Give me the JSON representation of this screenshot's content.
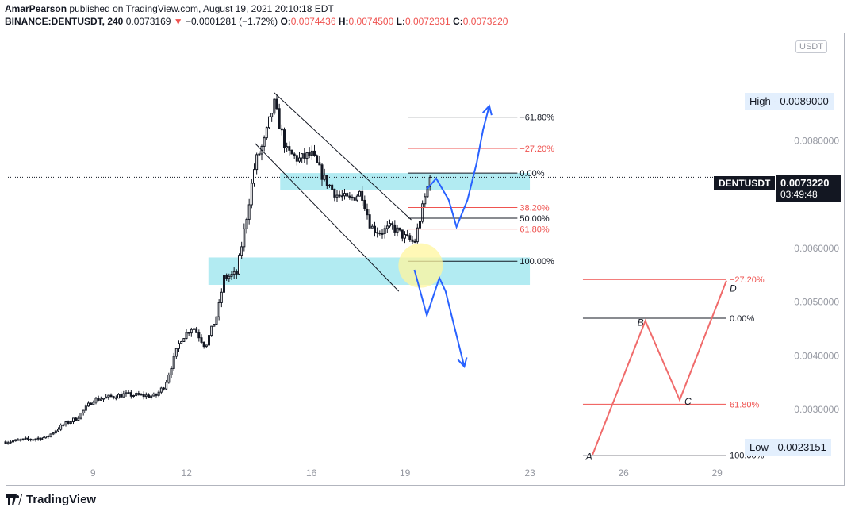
{
  "header": {
    "author": "AmarPearson",
    "published_text": "published on TradingView.com, August 19, 2021 20:10:18 EDT",
    "symbol": "BINANCE:DENTUSDT, 240",
    "last": "0.0073169",
    "change": "−0.0001281 (−1.72%)",
    "o_label": "O:",
    "o": "0.0074436",
    "h_label": "H:",
    "h": "0.0074500",
    "l_label": "L:",
    "l": "0.0072331",
    "c_label": "C:",
    "c": "0.0073220"
  },
  "price_axis": {
    "currency": "USDT",
    "high_label": "High",
    "high_value": "0.0089000",
    "low_label": "Low",
    "low_value": "0.0023151",
    "symbol_tag": "DENTUSDT",
    "current_price": "0.0073220",
    "countdown": "03:49:48"
  },
  "footer": {
    "brand": "TradingView"
  },
  "colors": {
    "bull": "#ffffff",
    "bear": "#131722",
    "fib_red": "#ef5350",
    "zone": "#b2ebf2",
    "projection": "#2962ff",
    "harmonic": "#f06b6b",
    "highlight": "#fff59d"
  },
  "chart_data": {
    "type": "candlestick",
    "title": "BINANCE:DENTUSDT, 240",
    "ylabel": "USDT",
    "y_range": [
      0.0016,
      0.01
    ],
    "y_ticks": [
      {
        "value": 0.008,
        "label": "0.0080000"
      },
      {
        "value": 0.006,
        "label": "0.0060000"
      },
      {
        "value": 0.005,
        "label": "0.0050000"
      },
      {
        "value": 0.004,
        "label": "0.0040000"
      },
      {
        "value": 0.003,
        "label": "0.0030000"
      }
    ],
    "x_range": [
      6.2,
      30.8
    ],
    "x_ticks": [
      {
        "value": 9,
        "label": "9"
      },
      {
        "value": 12,
        "label": "12"
      },
      {
        "value": 16,
        "label": "16"
      },
      {
        "value": 19,
        "label": "19"
      },
      {
        "value": 23,
        "label": "23"
      },
      {
        "value": 26,
        "label": "26"
      },
      {
        "value": 29,
        "label": "29"
      }
    ],
    "anchors": [
      {
        "x": 6.2,
        "price": 0.0024
      },
      {
        "x": 7.5,
        "price": 0.00248
      },
      {
        "x": 8.0,
        "price": 0.0027
      },
      {
        "x": 8.5,
        "price": 0.00285
      },
      {
        "x": 9.0,
        "price": 0.00318
      },
      {
        "x": 10.0,
        "price": 0.00328
      },
      {
        "x": 11.0,
        "price": 0.00325
      },
      {
        "x": 11.3,
        "price": 0.00345
      },
      {
        "x": 11.8,
        "price": 0.0043
      },
      {
        "x": 12.2,
        "price": 0.00455
      },
      {
        "x": 12.6,
        "price": 0.00418
      },
      {
        "x": 13.0,
        "price": 0.0048
      },
      {
        "x": 13.2,
        "price": 0.00545
      },
      {
        "x": 13.6,
        "price": 0.00552
      },
      {
        "x": 13.9,
        "price": 0.0065
      },
      {
        "x": 14.2,
        "price": 0.0076
      },
      {
        "x": 14.5,
        "price": 0.008
      },
      {
        "x": 14.8,
        "price": 0.0087
      },
      {
        "x": 15.2,
        "price": 0.0078
      },
      {
        "x": 15.6,
        "price": 0.00765
      },
      {
        "x": 16.0,
        "price": 0.00775
      },
      {
        "x": 16.4,
        "price": 0.0073
      },
      {
        "x": 16.8,
        "price": 0.007
      },
      {
        "x": 17.2,
        "price": 0.0069
      },
      {
        "x": 17.6,
        "price": 0.00705
      },
      {
        "x": 17.9,
        "price": 0.0064
      },
      {
        "x": 18.2,
        "price": 0.0063
      },
      {
        "x": 18.6,
        "price": 0.0064
      },
      {
        "x": 19.0,
        "price": 0.0062
      },
      {
        "x": 19.3,
        "price": 0.0061
      },
      {
        "x": 19.6,
        "price": 0.00685
      },
      {
        "x": 19.8,
        "price": 0.00732
      }
    ],
    "zones": [
      {
        "name": "upper-supply-zone",
        "x0": 15.0,
        "x1": 23.0,
        "y0": 0.00708,
        "y1": 0.0074
      },
      {
        "name": "lower-demand-zone",
        "x0": 12.7,
        "x1": 23.0,
        "y0": 0.00532,
        "y1": 0.00583
      }
    ],
    "channel": [
      {
        "x0": 14.8,
        "y0": 0.0089,
        "x1": 19.2,
        "y1": 0.00653
      },
      {
        "x0": 14.2,
        "y0": 0.00795,
        "x1": 18.8,
        "y1": 0.0052
      }
    ],
    "fib_main": {
      "x0": 19.1,
      "x1": 22.6,
      "levels": [
        {
          "label": "−61.80%",
          "value": 0.00844,
          "color": "#131722"
        },
        {
          "label": "−27.20%",
          "value": 0.00786,
          "color": "#ef5350"
        },
        {
          "label": "0.00%",
          "value": 0.0074,
          "color": "#131722"
        },
        {
          "label": "38.20%",
          "value": 0.00676,
          "color": "#ef5350"
        },
        {
          "label": "50.00%",
          "value": 0.00656,
          "color": "#131722"
        },
        {
          "label": "61.80%",
          "value": 0.00636,
          "color": "#ef5350"
        },
        {
          "label": "100.00%",
          "value": 0.00576,
          "color": "#131722"
        }
      ]
    },
    "fib_harmonic": {
      "x0": 24.7,
      "x1": 29.3,
      "levels": [
        {
          "label": "−27.20%",
          "value": 0.00542,
          "color": "#ef5350"
        },
        {
          "label": "0.00%",
          "value": 0.0047,
          "color": "#131722"
        },
        {
          "label": "61.80%",
          "value": 0.0031,
          "color": "#ef5350"
        },
        {
          "label": "100.00%",
          "value": 0.00215,
          "color": "#131722"
        }
      ]
    },
    "harmonic_pattern": [
      {
        "label": "A",
        "x": 25.0,
        "y": 0.00215
      },
      {
        "label": "B",
        "x": 26.7,
        "y": 0.00465
      },
      {
        "label": "C",
        "x": 27.8,
        "y": 0.00318
      },
      {
        "label": "D",
        "x": 29.3,
        "y": 0.0054
      }
    ],
    "projection_up": [
      {
        "x": 19.7,
        "y": 0.0071
      },
      {
        "x": 20.0,
        "y": 0.0073
      },
      {
        "x": 20.4,
        "y": 0.0069
      },
      {
        "x": 20.65,
        "y": 0.0064
      },
      {
        "x": 21.0,
        "y": 0.0069
      },
      {
        "x": 21.3,
        "y": 0.0076
      },
      {
        "x": 21.5,
        "y": 0.0082
      },
      {
        "x": 21.7,
        "y": 0.00865
      }
    ],
    "projection_down": [
      {
        "x": 19.3,
        "y": 0.0056
      },
      {
        "x": 19.7,
        "y": 0.00475
      },
      {
        "x": 20.1,
        "y": 0.00545
      },
      {
        "x": 20.3,
        "y": 0.0052
      },
      {
        "x": 20.6,
        "y": 0.0045
      },
      {
        "x": 20.9,
        "y": 0.0038
      }
    ],
    "highlight_circle": {
      "x": 19.5,
      "y": 0.00568
    }
  }
}
